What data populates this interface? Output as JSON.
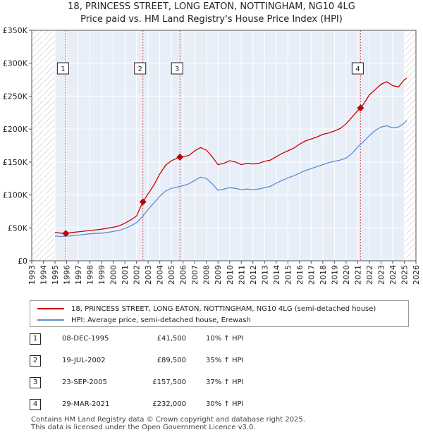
{
  "header": {
    "title_line1": "18, PRINCESS STREET, LONG EATON, NOTTINGHAM, NG10 4LG",
    "title_line2": "Price paid vs. HM Land Registry's House Price Index (HPI)"
  },
  "legend": {
    "property_label": "18, PRINCESS STREET, LONG EATON, NOTTINGHAM, NG10 4LG (semi-detached house)",
    "hpi_label": "HPI: Average price, semi-detached house, Erewash"
  },
  "sales": [
    {
      "num": "1",
      "date": "08-DEC-1995",
      "price": "£41,500",
      "hpi": "10% ↑ HPI"
    },
    {
      "num": "2",
      "date": "19-JUL-2002",
      "price": "£89,500",
      "hpi": "35% ↑ HPI"
    },
    {
      "num": "3",
      "date": "23-SEP-2005",
      "price": "£157,500",
      "hpi": "37% ↑ HPI"
    },
    {
      "num": "4",
      "date": "29-MAR-2021",
      "price": "£232,000",
      "hpi": "30% ↑ HPI"
    }
  ],
  "footer": {
    "line1": "Contains HM Land Registry data © Crown copyright and database right 2025.",
    "line2": "This data is licensed under the Open Government Licence v3.0."
  },
  "colors": {
    "property": "#cc0000",
    "hpi": "#5b8fd0",
    "shade": "#e8eef8",
    "hatch": "#bbbbbb",
    "vline": "#dd5555"
  },
  "chart_data": {
    "type": "line",
    "title": "Price paid vs. HM Land Registry's House Price Index (HPI)",
    "xlabel": "",
    "ylabel": "",
    "xlim": [
      1993,
      2026
    ],
    "ylim": [
      0,
      350000
    ],
    "x_ticks": [
      1993,
      1994,
      1995,
      1996,
      1997,
      1998,
      1999,
      2000,
      2001,
      2002,
      2003,
      2004,
      2005,
      2006,
      2007,
      2008,
      2009,
      2010,
      2011,
      2012,
      2013,
      2014,
      2015,
      2016,
      2017,
      2018,
      2019,
      2020,
      2021,
      2022,
      2023,
      2024,
      2025,
      2026
    ],
    "x_tick_labels": [
      "1993",
      "1994",
      "1995",
      "1996",
      "1997",
      "1998",
      "1999",
      "2000",
      "2001",
      "2002",
      "2003",
      "2004",
      "2005",
      "2006",
      "2007",
      "2008",
      "2009",
      "2010",
      "2011",
      "2012",
      "2013",
      "2014",
      "2015",
      "2016",
      "2017",
      "2018",
      "2019",
      "2020",
      "2021",
      "2022",
      "2023",
      "2024",
      "2025",
      "2026"
    ],
    "y_ticks": [
      0,
      50000,
      100000,
      150000,
      200000,
      250000,
      300000,
      350000
    ],
    "y_tick_labels": [
      "£0",
      "£50K",
      "£100K",
      "£150K",
      "£200K",
      "£250K",
      "£300K",
      "£350K"
    ],
    "hatched_ranges": [
      [
        1993,
        1995
      ],
      [
        2025,
        2026
      ]
    ],
    "series": [
      {
        "name": "18, PRINCESS STREET, LONG EATON, NOTTINGHAM, NG10 4LG (semi-detached house)",
        "x": [
          1995,
          1995.5,
          1995.93,
          1996.5,
          1997,
          1997.5,
          1998,
          1998.5,
          1999,
          1999.5,
          2000,
          2000.5,
          2001,
          2001.5,
          2002,
          2002.55,
          2003,
          2003.5,
          2004,
          2004.5,
          2005,
          2005.5,
          2005.73,
          2006,
          2006.5,
          2007,
          2007.5,
          2008,
          2008.5,
          2009,
          2009.5,
          2010,
          2010.5,
          2011,
          2011.5,
          2012,
          2012.5,
          2013,
          2013.5,
          2014,
          2014.5,
          2015,
          2015.5,
          2016,
          2016.5,
          2017,
          2017.5,
          2018,
          2018.5,
          2019,
          2019.5,
          2020,
          2020.5,
          2021,
          2021.24,
          2021.5,
          2022,
          2022.5,
          2023,
          2023.5,
          2024,
          2024.5,
          2025,
          2025.2
        ],
        "values": [
          43000,
          42000,
          41500,
          43000,
          44000,
          45000,
          46000,
          47000,
          48000,
          49500,
          51000,
          53000,
          57000,
          62000,
          68000,
          89500,
          102000,
          115000,
          132000,
          145000,
          152000,
          156000,
          157500,
          158000,
          160000,
          167000,
          172000,
          168000,
          158000,
          146000,
          148000,
          152000,
          150000,
          146000,
          148000,
          147000,
          148000,
          151000,
          153000,
          158000,
          163000,
          167000,
          171000,
          177000,
          182000,
          185000,
          188000,
          192000,
          194000,
          197000,
          201000,
          208000,
          218000,
          228000,
          232000,
          238000,
          252000,
          260000,
          268000,
          272000,
          266000,
          264000,
          275000,
          277000
        ]
      },
      {
        "name": "HPI: Average price, semi-detached house, Erewash",
        "x": [
          1995,
          1995.5,
          1996,
          1996.5,
          1997,
          1997.5,
          1998,
          1998.5,
          1999,
          1999.5,
          2000,
          2000.5,
          2001,
          2001.5,
          2002,
          2002.5,
          2003,
          2003.5,
          2004,
          2004.5,
          2005,
          2005.5,
          2006,
          2006.5,
          2007,
          2007.5,
          2008,
          2008.5,
          2009,
          2009.5,
          2010,
          2010.5,
          2011,
          2011.5,
          2012,
          2012.5,
          2013,
          2013.5,
          2014,
          2014.5,
          2015,
          2015.5,
          2016,
          2016.5,
          2017,
          2017.5,
          2018,
          2018.5,
          2019,
          2019.5,
          2020,
          2020.5,
          2021,
          2021.5,
          2022,
          2022.5,
          2023,
          2023.5,
          2024,
          2024.5,
          2025,
          2025.2
        ],
        "values": [
          37500,
          37000,
          37500,
          38000,
          39000,
          40000,
          41000,
          41500,
          42000,
          43000,
          44500,
          46000,
          49000,
          53000,
          58000,
          67000,
          78000,
          88000,
          98000,
          106000,
          110000,
          112000,
          114000,
          117000,
          122000,
          127000,
          125000,
          117000,
          107000,
          109000,
          111000,
          110000,
          108000,
          109000,
          108000,
          109000,
          111000,
          113000,
          118000,
          122000,
          126000,
          129000,
          133000,
          137000,
          140000,
          143000,
          146000,
          149000,
          151000,
          153000,
          156000,
          163000,
          173000,
          181000,
          190000,
          198000,
          203000,
          205000,
          202000,
          203000,
          209000,
          213000
        ]
      }
    ],
    "sale_markers": [
      {
        "label": "1",
        "x": 1995.93,
        "y": 41500
      },
      {
        "label": "2",
        "x": 2002.55,
        "y": 89500
      },
      {
        "label": "3",
        "x": 2005.73,
        "y": 157500
      },
      {
        "label": "4",
        "x": 2021.24,
        "y": 232000
      }
    ],
    "legend_position": "below-chart"
  }
}
